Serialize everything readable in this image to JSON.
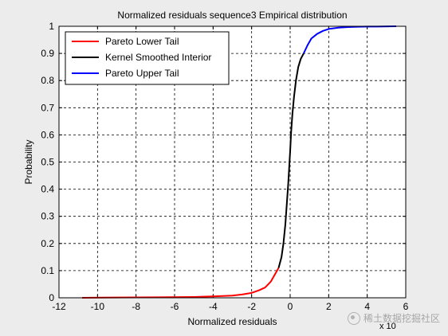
{
  "chart_data": {
    "type": "line",
    "title": "Normalized residuals sequence3 Empirical distribution",
    "xlabel": "Normalized residuals",
    "ylabel": "Probability",
    "x_exponent_label": "x 10",
    "xlim": [
      -12,
      6
    ],
    "ylim": [
      0,
      1
    ],
    "xticks": [
      "-12",
      "-10",
      "-8",
      "-6",
      "-4",
      "-2",
      "0",
      "2",
      "4",
      "6"
    ],
    "yticks": [
      "0",
      "0.1",
      "0.2",
      "0.3",
      "0.4",
      "0.5",
      "0.6",
      "0.7",
      "0.8",
      "0.9",
      "1"
    ],
    "grid": true,
    "grid_style": "dashed",
    "legend_position": "top-left",
    "series": [
      {
        "name": "Pareto Lower Tail",
        "color": "#ff0000",
        "x": [
          -10.8,
          -9,
          -7,
          -5,
          -4,
          -3,
          -2.5,
          -2,
          -1.6,
          -1.3,
          -1.0,
          -0.8,
          -0.6
        ],
        "y": [
          0.0,
          0.001,
          0.002,
          0.003,
          0.005,
          0.008,
          0.012,
          0.018,
          0.028,
          0.038,
          0.06,
          0.085,
          0.11
        ]
      },
      {
        "name": "Kernel Smoothed Interior",
        "color": "#000000",
        "x": [
          -0.6,
          -0.45,
          -0.35,
          -0.25,
          -0.18,
          -0.1,
          -0.05,
          0.0,
          0.05,
          0.12,
          0.2,
          0.3,
          0.42,
          0.55,
          0.7
        ],
        "y": [
          0.11,
          0.15,
          0.2,
          0.27,
          0.34,
          0.42,
          0.48,
          0.54,
          0.61,
          0.68,
          0.74,
          0.8,
          0.85,
          0.88,
          0.9
        ]
      },
      {
        "name": "Pareto Upper Tail",
        "color": "#0000ff",
        "x": [
          0.7,
          0.9,
          1.1,
          1.4,
          1.7,
          2.0,
          2.5,
          3.0,
          3.5,
          4.0,
          4.5,
          5.5
        ],
        "y": [
          0.9,
          0.93,
          0.955,
          0.972,
          0.983,
          0.99,
          0.995,
          0.997,
          0.998,
          0.999,
          0.999,
          1.0
        ]
      }
    ]
  },
  "watermark": {
    "text": "稀土数据挖掘社区",
    "icon": "wechat-like-icon"
  }
}
